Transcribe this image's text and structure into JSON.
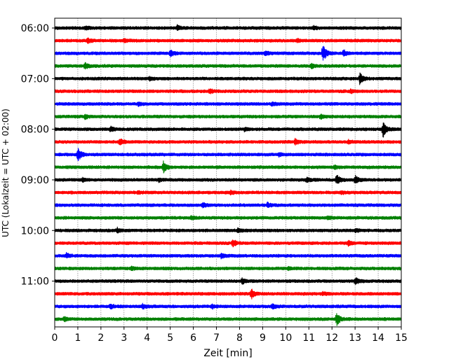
{
  "chart_data": {
    "type": "line",
    "title": "",
    "xlabel": "Zeit  [min]",
    "ylabel": "UTC (Lokalzeit = UTC + 02:00)",
    "xlim": [
      0,
      15
    ],
    "xticks": [
      "0",
      "1",
      "2",
      "3",
      "4",
      "5",
      "6",
      "7",
      "8",
      "9",
      "10",
      "11",
      "12",
      "13",
      "14",
      "15"
    ],
    "yticks": [
      "06:00",
      "07:00",
      "08:00",
      "09:00",
      "10:00",
      "11:00"
    ],
    "grid": "vertical, dotted",
    "trace_interval_minutes": 15,
    "trace_colors": [
      "#000000",
      "#ff0000",
      "#0000ff",
      "#008000"
    ],
    "traces": [
      {
        "start": "06:00",
        "events": [
          {
            "t": 1.3,
            "a": 2
          },
          {
            "t": 5.3,
            "a": 3
          },
          {
            "t": 11.2,
            "a": 2
          }
        ]
      },
      {
        "start": "06:15",
        "events": [
          {
            "t": 1.4,
            "a": 4
          },
          {
            "t": 3.0,
            "a": 2
          },
          {
            "t": 10.5,
            "a": 2
          }
        ]
      },
      {
        "start": "06:30",
        "events": [
          {
            "t": 5.0,
            "a": 4
          },
          {
            "t": 9.1,
            "a": 3
          },
          {
            "t": 11.6,
            "a": 12
          },
          {
            "t": 12.5,
            "a": 4
          }
        ]
      },
      {
        "start": "06:45",
        "events": [
          {
            "t": 1.3,
            "a": 4
          },
          {
            "t": 11.1,
            "a": 3
          }
        ]
      },
      {
        "start": "07:00",
        "events": [
          {
            "t": 4.1,
            "a": 2
          },
          {
            "t": 13.2,
            "a": 8
          }
        ]
      },
      {
        "start": "07:15",
        "events": [
          {
            "t": 6.7,
            "a": 3
          },
          {
            "t": 12.8,
            "a": 2
          }
        ]
      },
      {
        "start": "07:30",
        "events": [
          {
            "t": 3.6,
            "a": 2
          },
          {
            "t": 9.4,
            "a": 2
          }
        ]
      },
      {
        "start": "07:45",
        "events": [
          {
            "t": 1.3,
            "a": 3
          },
          {
            "t": 11.5,
            "a": 3
          }
        ]
      },
      {
        "start": "08:00",
        "events": [
          {
            "t": 2.4,
            "a": 3
          },
          {
            "t": 8.2,
            "a": 2
          },
          {
            "t": 14.2,
            "a": 12
          }
        ]
      },
      {
        "start": "08:15",
        "events": [
          {
            "t": 2.8,
            "a": 5
          },
          {
            "t": 10.4,
            "a": 4
          },
          {
            "t": 12.7,
            "a": 2
          }
        ]
      },
      {
        "start": "08:30",
        "events": [
          {
            "t": 1.0,
            "a": 10
          },
          {
            "t": 9.7,
            "a": 2
          }
        ]
      },
      {
        "start": "08:45",
        "events": [
          {
            "t": 4.7,
            "a": 7
          },
          {
            "t": 12.1,
            "a": 2
          }
        ]
      },
      {
        "start": "09:00",
        "events": [
          {
            "t": 1.2,
            "a": 2
          },
          {
            "t": 4.5,
            "a": 2
          },
          {
            "t": 10.9,
            "a": 3
          },
          {
            "t": 12.2,
            "a": 7
          },
          {
            "t": 13.0,
            "a": 6
          }
        ]
      },
      {
        "start": "09:15",
        "events": [
          {
            "t": 3.6,
            "a": 2
          },
          {
            "t": 7.6,
            "a": 2
          },
          {
            "t": 12.4,
            "a": 2
          }
        ]
      },
      {
        "start": "09:30",
        "events": [
          {
            "t": 6.4,
            "a": 3
          },
          {
            "t": 9.2,
            "a": 3
          }
        ]
      },
      {
        "start": "09:45",
        "events": [
          {
            "t": 5.9,
            "a": 2
          },
          {
            "t": 11.8,
            "a": 2
          }
        ]
      },
      {
        "start": "10:00",
        "events": [
          {
            "t": 2.7,
            "a": 3
          },
          {
            "t": 7.9,
            "a": 2
          },
          {
            "t": 13.0,
            "a": 2
          }
        ]
      },
      {
        "start": "10:15",
        "events": [
          {
            "t": 7.7,
            "a": 5
          },
          {
            "t": 12.7,
            "a": 3
          }
        ]
      },
      {
        "start": "10:30",
        "events": [
          {
            "t": 0.5,
            "a": 3
          },
          {
            "t": 7.2,
            "a": 3
          }
        ]
      },
      {
        "start": "10:45",
        "events": [
          {
            "t": 3.3,
            "a": 2
          },
          {
            "t": 10.1,
            "a": 2
          }
        ]
      },
      {
        "start": "11:00",
        "events": [
          {
            "t": 8.1,
            "a": 4
          },
          {
            "t": 13.0,
            "a": 5
          }
        ]
      },
      {
        "start": "11:15",
        "events": [
          {
            "t": 8.5,
            "a": 7
          },
          {
            "t": 11.6,
            "a": 2
          }
        ]
      },
      {
        "start": "11:30",
        "events": [
          {
            "t": 2.4,
            "a": 3
          },
          {
            "t": 3.8,
            "a": 3
          },
          {
            "t": 6.8,
            "a": 3
          },
          {
            "t": 9.4,
            "a": 3
          }
        ]
      },
      {
        "start": "11:45",
        "events": [
          {
            "t": 0.4,
            "a": 3
          },
          {
            "t": 12.2,
            "a": 9
          }
        ]
      }
    ]
  }
}
